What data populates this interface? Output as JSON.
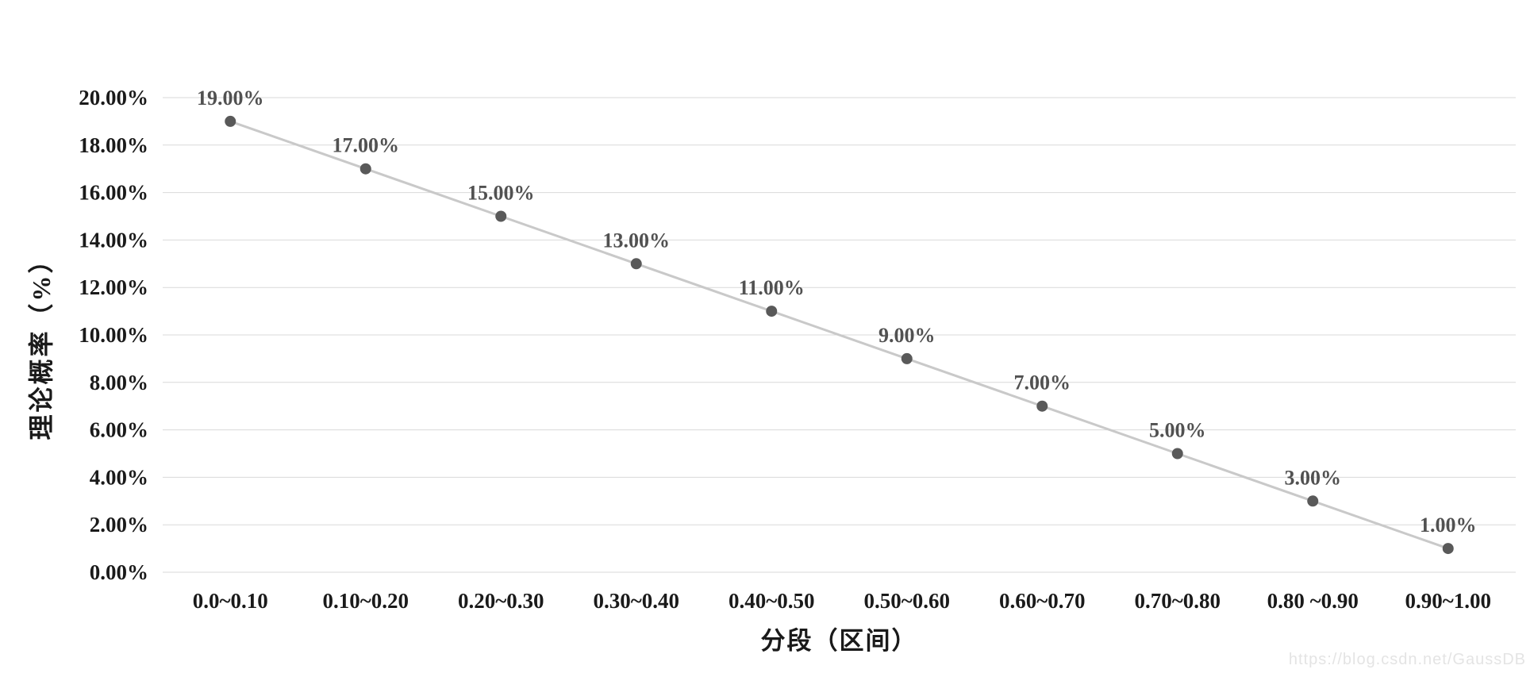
{
  "chart_data": {
    "type": "line",
    "title": "",
    "xlabel": "分段（区间）",
    "ylabel": "理论概率（%）",
    "categories": [
      "0.0~0.10",
      "0.10~0.20",
      "0.20~0.30",
      "0.30~0.40",
      "0.40~0.50",
      "0.50~0.60",
      "0.60~0.70",
      "0.70~0.80",
      "0.80 ~0.90",
      "0.90~1.00"
    ],
    "series": [
      {
        "name": "理论概率",
        "values": [
          19,
          17,
          15,
          13,
          11,
          9,
          7,
          5,
          3,
          1
        ],
        "data_labels": [
          "19.00%",
          "17.00%",
          "15.00%",
          "13.00%",
          "11.00%",
          "9.00%",
          "7.00%",
          "5.00%",
          "3.00%",
          "1.00%"
        ]
      }
    ],
    "ylim": [
      0,
      20
    ],
    "y_ticks": [
      {
        "value": 0,
        "label": "0.00%"
      },
      {
        "value": 2,
        "label": "2.00%"
      },
      {
        "value": 4,
        "label": "4.00%"
      },
      {
        "value": 6,
        "label": "6.00%"
      },
      {
        "value": 8,
        "label": "8.00%"
      },
      {
        "value": 10,
        "label": "10.00%"
      },
      {
        "value": 12,
        "label": "12.00%"
      },
      {
        "value": 14,
        "label": "14.00%"
      },
      {
        "value": 16,
        "label": "16.00%"
      },
      {
        "value": 18,
        "label": "18.00%"
      },
      {
        "value": 20,
        "label": "20.00%"
      }
    ],
    "grid": true,
    "legend": false,
    "colors": {
      "line": "#c9c9c9",
      "marker": "#595959",
      "gridline": "#d9d9d9",
      "tick_label": "#1a1a1a",
      "data_label": "#515151"
    }
  },
  "watermark": {
    "text": "https://blog.csdn.net/GaussDB"
  }
}
